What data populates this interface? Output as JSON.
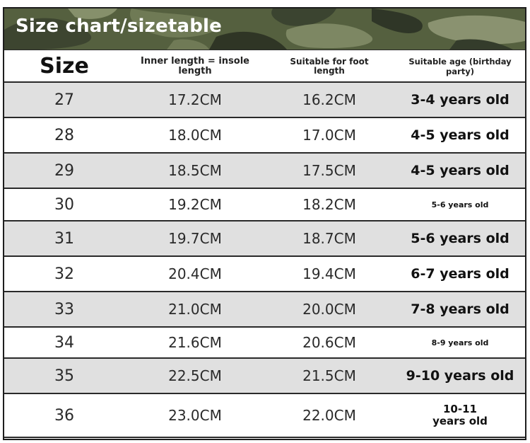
{
  "title": "Size chart/sizetable",
  "colors": {
    "banner": "#4f5a43",
    "shaded_row": "#e0e0e0",
    "border": "#2a2a2a"
  },
  "table": {
    "headers": {
      "size": "Size",
      "inner_length": "Inner length = insole length",
      "foot_length": "Suitable for foot length",
      "age": "Suitable age (birthday party)"
    },
    "rows": [
      {
        "size": "27",
        "inner": "17.2CM",
        "foot": "16.2CM",
        "age": "3-4 years old"
      },
      {
        "size": "28",
        "inner": "18.0CM",
        "foot": "17.0CM",
        "age": "4-5 years old"
      },
      {
        "size": "29",
        "inner": "18.5CM",
        "foot": "17.5CM",
        "age": "4-5 years old"
      },
      {
        "size": "30",
        "inner": "19.2CM",
        "foot": "18.2CM",
        "age": "5-6 years old"
      },
      {
        "size": "31",
        "inner": "19.7CM",
        "foot": "18.7CM",
        "age": "5-6 years old"
      },
      {
        "size": "32",
        "inner": "20.4CM",
        "foot": "19.4CM",
        "age": "6-7 years old"
      },
      {
        "size": "33",
        "inner": "21.0CM",
        "foot": "20.0CM",
        "age": "7-8 years old"
      },
      {
        "size": "34",
        "inner": "21.6CM",
        "foot": "20.6CM",
        "age": "8-9 years old"
      },
      {
        "size": "35",
        "inner": "22.5CM",
        "foot": "21.5CM",
        "age": "9-10 years old"
      },
      {
        "size": "36",
        "inner": "23.0CM",
        "foot": "22.0CM",
        "age": "10-11 years old"
      }
    ]
  }
}
